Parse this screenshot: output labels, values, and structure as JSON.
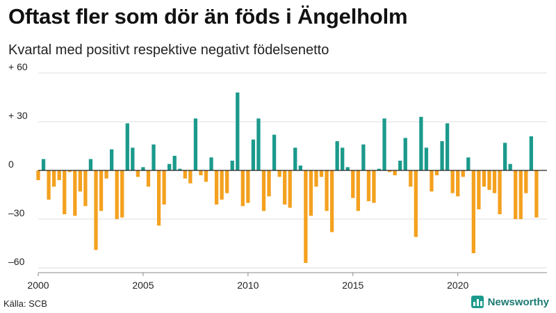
{
  "header": {
    "title": "Oftast fler som dör än föds i Ängelholm",
    "subtitle": "Kvartal med positivt respektive negativt födelsenetto"
  },
  "footer": {
    "source": "Källa: SCB",
    "brand": "Newsworthy"
  },
  "colors": {
    "positive": "#1b9a8c",
    "negative": "#f4a11f",
    "grid": "#dddddd",
    "zero": "#222222"
  },
  "chart_data": {
    "type": "bar",
    "title": "Oftast fler som dör än föds i Ängelholm",
    "subtitle": "Kvartal med positivt respektive negativt födelsenetto",
    "xlabel": "",
    "ylabel": "",
    "ylim": [
      -60,
      60
    ],
    "xlim": [
      2000,
      2024.25
    ],
    "y_ticks": [
      60,
      30,
      0,
      -30,
      -60
    ],
    "y_tick_labels": [
      "+ 60",
      "+ 30",
      "0",
      "–30",
      "–60"
    ],
    "x_ticks": [
      2000,
      2005,
      2010,
      2015,
      2020
    ],
    "x_tick_labels": [
      "2000",
      "2005",
      "2010",
      "2015",
      "2020"
    ],
    "grid": true,
    "start_year": 2000,
    "periods_per_year": 4,
    "values": [
      -6,
      7,
      -18,
      -10,
      -6,
      -27,
      -1,
      -28,
      -13,
      -22,
      7,
      -49,
      -25,
      -5,
      13,
      -30,
      -29,
      29,
      14,
      -4,
      2,
      -10,
      16,
      -34,
      -21,
      4,
      9,
      1,
      -5,
      -8,
      32,
      -3,
      -7,
      8,
      -21,
      -18,
      -14,
      6,
      48,
      -22,
      -20,
      19,
      32,
      -25,
      -16,
      22,
      -4,
      -21,
      -23,
      14,
      3,
      -57,
      -28,
      -10,
      -4,
      -25,
      -38,
      18,
      14,
      2,
      -17,
      -25,
      16,
      -19,
      -20,
      1,
      32,
      -1,
      -3,
      6,
      20,
      -10,
      -41,
      33,
      14,
      -13,
      -3,
      18,
      29,
      -14,
      -16,
      -4,
      8,
      -51,
      -24,
      -10,
      -12,
      -14,
      -27,
      17,
      4,
      -30,
      -30,
      -14,
      21,
      -29
    ]
  }
}
